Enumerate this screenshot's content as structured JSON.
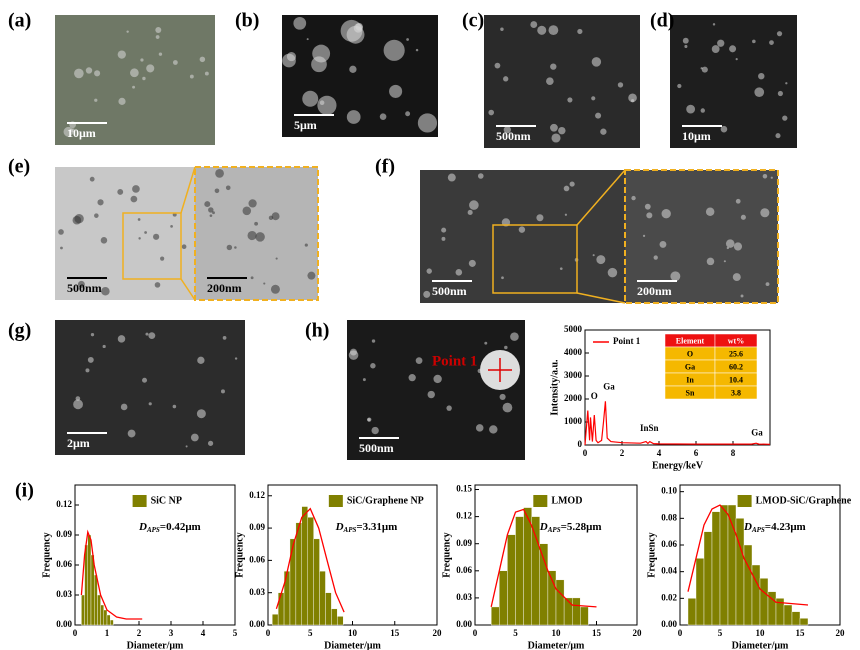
{
  "figure": {
    "panels": [
      {
        "label": "(a)",
        "scale_bars": [
          "10μm"
        ]
      },
      {
        "label": "(b)",
        "scale_bars": [
          "5μm"
        ]
      },
      {
        "label": "(c)",
        "scale_bars": [
          "500nm"
        ]
      },
      {
        "label": "(d)",
        "scale_bars": [
          "10μm"
        ]
      },
      {
        "label": "(e)",
        "scale_bars": [
          "500nm",
          "200nm"
        ]
      },
      {
        "label": "(f)",
        "scale_bars": [
          "500nm",
          "200nm"
        ]
      },
      {
        "label": "(g)",
        "scale_bars": [
          "2μm"
        ]
      },
      {
        "label": "(h)",
        "scale_bars": [
          "500nm"
        ],
        "annotation": "Point 1"
      },
      {
        "label": "(i)",
        "scale_bars": []
      }
    ]
  },
  "chart_data": [
    {
      "type": "line",
      "xlabel": "Energy/keV",
      "ylabel": "Intensity/a.u.",
      "x": [
        0,
        0.15,
        0.25,
        0.3,
        0.4,
        0.5,
        0.6,
        0.7,
        0.9,
        1.0,
        1.1,
        1.2,
        1.4,
        2,
        3,
        3.3,
        3.4,
        3.5,
        3.7,
        4,
        6,
        9,
        9.25,
        9.4,
        10
      ],
      "series": [
        {
          "name": "Point 1",
          "color": "#ff0000",
          "values": [
            0,
            1500,
            200,
            1200,
            150,
            1300,
            200,
            100,
            200,
            1000,
            1900,
            300,
            150,
            100,
            80,
            150,
            70,
            150,
            60,
            50,
            40,
            40,
            80,
            40,
            30
          ]
        }
      ],
      "annotations": [
        "O",
        "Ga",
        "In",
        "Sn",
        "Ga"
      ],
      "xlim": [
        0,
        10
      ],
      "xticks": [
        0,
        2,
        4,
        6,
        8
      ],
      "ylim": [
        0,
        5000
      ],
      "yticks": [
        0,
        1000,
        2000,
        3000,
        4000,
        5000
      ],
      "table": {
        "header": [
          "Element",
          "wt%"
        ],
        "rows": [
          [
            "O",
            25.6
          ],
          [
            "Ga",
            60.2
          ],
          [
            "In",
            10.4
          ],
          [
            "Sn",
            3.8
          ]
        ]
      }
    },
    {
      "type": "histogram",
      "xlabel": "Diameter/μm",
      "ylabel": "Frequency",
      "bins": [
        0.2,
        0.3,
        0.4,
        0.5,
        0.6,
        0.7,
        0.8,
        0.9,
        1.0,
        1.1,
        1.2
      ],
      "series": [
        {
          "name": "SiC NP",
          "color": "#808000",
          "values": [
            0.03,
            0.08,
            0.09,
            0.07,
            0.05,
            0.03,
            0.02,
            0.015,
            0.01,
            0.005
          ]
        }
      ],
      "fit": {
        "color": "#ff0000",
        "x": [
          0.2,
          0.3,
          0.4,
          0.5,
          0.6,
          0.8,
          1.0,
          1.3,
          1.6,
          2.1
        ],
        "y": [
          0.03,
          0.07,
          0.093,
          0.085,
          0.06,
          0.03,
          0.015,
          0.008,
          0.006,
          0.006
        ]
      },
      "annotation": {
        "symbol": "D",
        "subscript": "APS",
        "text": "=0.42μm"
      },
      "xlim": [
        0,
        5
      ],
      "xticks": [
        0,
        1,
        2,
        3,
        4,
        5
      ],
      "ylim": [
        0,
        0.14
      ],
      "yticks": [
        {
          "value": 0,
          "label": "0.00"
        },
        {
          "value": 0.03,
          "label": "0.03"
        },
        {
          "value": 0.06,
          "label": "0.06"
        },
        {
          "value": 0.09,
          "label": "0.09"
        },
        {
          "value": 0.12,
          "label": "0.12"
        }
      ]
    },
    {
      "type": "histogram",
      "xlabel": "Diameter/μm",
      "ylabel": "Frequency",
      "bins": [
        0.5,
        1.2,
        1.9,
        2.6,
        3.3,
        4.0,
        4.7,
        5.4,
        6.1,
        6.8,
        7.5,
        8.2,
        8.9
      ],
      "series": [
        {
          "name": "SiC/Graphene NP",
          "color": "#808000",
          "values": [
            0.01,
            0.03,
            0.05,
            0.08,
            0.095,
            0.11,
            0.1,
            0.08,
            0.05,
            0.03,
            0.015,
            0.008
          ]
        }
      ],
      "fit": {
        "color": "#ff0000",
        "x": [
          1,
          2,
          3,
          4,
          5,
          6,
          7,
          8,
          9
        ],
        "y": [
          0.015,
          0.04,
          0.075,
          0.1,
          0.108,
          0.09,
          0.06,
          0.03,
          0.012
        ]
      },
      "annotation": {
        "symbol": "D",
        "subscript": "APS",
        "text": "=3.31μm"
      },
      "xlim": [
        0,
        20
      ],
      "xticks": [
        0,
        5,
        10,
        15,
        20
      ],
      "ylim": [
        0,
        0.13
      ],
      "yticks": [
        {
          "value": 0,
          "label": "0.00"
        },
        {
          "value": 0.03,
          "label": "0.03"
        },
        {
          "value": 0.06,
          "label": "0.06"
        },
        {
          "value": 0.09,
          "label": "0.09"
        },
        {
          "value": 0.12,
          "label": "0.12"
        }
      ]
    },
    {
      "type": "histogram",
      "xlabel": "Diameter/μm",
      "ylabel": "Frequency",
      "bins": [
        2,
        3,
        4,
        5,
        6,
        7,
        8,
        9,
        10,
        11,
        12,
        13,
        14
      ],
      "series": [
        {
          "name": "LMOD",
          "color": "#808000",
          "values": [
            0.02,
            0.06,
            0.1,
            0.12,
            0.13,
            0.12,
            0.09,
            0.06,
            0.05,
            0.03,
            0.03,
            0.02
          ]
        }
      ],
      "fit": {
        "color": "#ff0000",
        "x": [
          2,
          3,
          4,
          5,
          6,
          7,
          8,
          9,
          10,
          12,
          15
        ],
        "y": [
          0.02,
          0.06,
          0.1,
          0.125,
          0.128,
          0.11,
          0.085,
          0.06,
          0.04,
          0.022,
          0.02
        ]
      },
      "annotation": {
        "symbol": "D",
        "subscript": "APS",
        "text": "=5.28μm"
      },
      "xlim": [
        0,
        20
      ],
      "xticks": [
        0,
        5,
        10,
        15,
        20
      ],
      "ylim": [
        0,
        0.155
      ],
      "yticks": [
        {
          "value": 0,
          "label": "0.00"
        },
        {
          "value": 0.03,
          "label": "0.03"
        },
        {
          "value": 0.06,
          "label": "0.06"
        },
        {
          "value": 0.09,
          "label": "0.09"
        },
        {
          "value": 0.12,
          "label": "0.12"
        },
        {
          "value": 0.15,
          "label": "0.15"
        }
      ]
    },
    {
      "type": "histogram",
      "xlabel": "Diameter/μm",
      "ylabel": "Frequency",
      "bins": [
        1,
        2,
        3,
        4,
        5,
        6,
        7,
        8,
        9,
        10,
        11,
        12,
        13,
        14,
        15,
        16
      ],
      "series": [
        {
          "name": "LMOD-SiC/Graphene",
          "color": "#808000",
          "values": [
            0.02,
            0.05,
            0.07,
            0.085,
            0.09,
            0.09,
            0.08,
            0.06,
            0.045,
            0.035,
            0.025,
            0.02,
            0.015,
            0.01,
            0.005
          ]
        }
      ],
      "fit": {
        "color": "#ff0000",
        "x": [
          1,
          2,
          3,
          4,
          5,
          6,
          7,
          8,
          10,
          12,
          16
        ],
        "y": [
          0.025,
          0.05,
          0.075,
          0.087,
          0.09,
          0.083,
          0.068,
          0.05,
          0.027,
          0.017,
          0.015
        ]
      },
      "annotation": {
        "symbol": "D",
        "subscript": "APS",
        "text": "=4.23μm"
      },
      "xlim": [
        0,
        20
      ],
      "xticks": [
        0,
        5,
        10,
        15,
        20
      ],
      "ylim": [
        0,
        0.105
      ],
      "yticks": [
        {
          "value": 0,
          "label": "0.00"
        },
        {
          "value": 0.02,
          "label": "0.02"
        },
        {
          "value": 0.04,
          "label": "0.04"
        },
        {
          "value": 0.06,
          "label": "0.06"
        },
        {
          "value": 0.08,
          "label": "0.08"
        },
        {
          "value": 0.1,
          "label": "0.10"
        }
      ]
    }
  ]
}
